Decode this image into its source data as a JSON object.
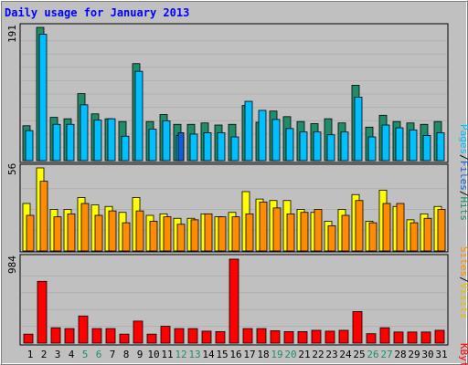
{
  "chart_data": {
    "type": "bar",
    "title": "Daily usage for January 2013",
    "categories": [
      "1",
      "2",
      "3",
      "4",
      "5",
      "6",
      "7",
      "8",
      "9",
      "10",
      "11",
      "12",
      "13",
      "14",
      "15",
      "16",
      "17",
      "18",
      "19",
      "20",
      "21",
      "22",
      "23",
      "24",
      "25",
      "26",
      "27",
      "28",
      "29",
      "30",
      "31"
    ],
    "weekend_days": [
      "5",
      "6",
      "12",
      "13",
      "19",
      "20",
      "26",
      "27"
    ],
    "panels": [
      {
        "id": "hits_files_pages",
        "ymax_label": "191",
        "ymax": 191,
        "legend": [
          "Pages",
          "Files",
          "Hits"
        ],
        "series": [
          {
            "name": "Hits",
            "color": "#218c6b",
            "values": [
              50,
              191,
              62,
              60,
              96,
              67,
              60,
              56,
              139,
              56,
              66,
              52,
              52,
              54,
              51,
              52,
              79,
              55,
              71,
              63,
              56,
              53,
              60,
              54,
              108,
              48,
              65,
              56,
              54,
              52,
              56
            ]
          },
          {
            "name": "Files",
            "color": "#00bfff",
            "values": [
              43,
              181,
              52,
              52,
              80,
              58,
              60,
              35,
              128,
              45,
              57,
              36,
              38,
              40,
              40,
              34,
              85,
              72,
              59,
              46,
              41,
              41,
              37,
              41,
              91,
              34,
              51,
              47,
              44,
              36,
              40
            ]
          },
          {
            "name": "Pages",
            "color": "#1060d8",
            "values": [
              40,
              40,
              40,
              40,
              36,
              40,
              40,
              35,
              40,
              40,
              40,
              40,
              38,
              40,
              40,
              34,
              40,
              40,
              40,
              40,
              40,
              40,
              37,
              40,
              40,
              34,
              40,
              40,
              40,
              36,
              40
            ]
          }
        ]
      },
      {
        "id": "visits_sites",
        "ymax_label": "56",
        "ymax": 56,
        "legend": [
          "Sites",
          "Visits"
        ],
        "series": [
          {
            "name": "Visits",
            "color": "#ffff00",
            "values": [
              32,
              56,
              28,
              28,
              36,
              31,
              30,
              26,
              36,
              24,
              25,
              22,
              22,
              25,
              23,
              26,
              40,
              35,
              34,
              34,
              28,
              26,
              20,
              28,
              38,
              20,
              41,
              30,
              21,
              25,
              30
            ]
          },
          {
            "name": "Sites",
            "color": "#ff8c00",
            "values": [
              24,
              47,
              23,
              25,
              32,
              24,
              27,
              19,
              27,
              20,
              23,
              18,
              21,
              25,
              23,
              23,
              25,
              33,
              29,
              25,
              26,
              28,
              17,
              24,
              34,
              19,
              32,
              32,
              19,
              22,
              28
            ]
          }
        ]
      },
      {
        "id": "kbytes",
        "ymax_label": "984",
        "ymax": 984,
        "legend": [
          "KBytes"
        ],
        "series": [
          {
            "name": "KBytes",
            "color": "#ff0000",
            "values": [
              105,
              724,
              180,
              170,
              318,
              170,
              170,
              105,
              258,
              105,
              197,
              170,
              170,
              140,
              135,
              984,
              170,
              170,
              145,
              135,
              135,
              150,
              140,
              150,
              370,
              110,
              180,
              130,
              130,
              130,
              150
            ]
          }
        ]
      }
    ]
  }
}
